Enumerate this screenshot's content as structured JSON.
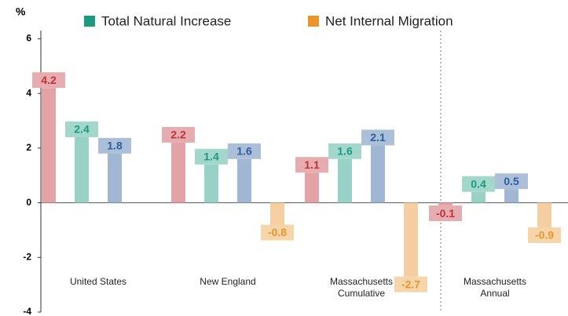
{
  "chart_data": {
    "type": "bar",
    "y_label": "%",
    "categories": [
      "United States",
      "New England",
      "Massachusetts Cumulative",
      "Massachusetts Annual"
    ],
    "series": [
      {
        "color": "#c0323a",
        "values": [
          4.2,
          2.2,
          1.1,
          -0.1
        ]
      },
      {
        "name": "Total Natural Increase",
        "color": "#1a9a80",
        "values": [
          2.4,
          1.4,
          1.6,
          0.4
        ]
      },
      {
        "color": "#2c5f9e",
        "values": [
          1.8,
          1.6,
          2.1,
          0.5
        ]
      },
      {
        "name": "Net Internal Migration",
        "color": "#e8952e",
        "values": [
          null,
          -0.8,
          -2.7,
          -0.9
        ]
      }
    ],
    "ylim": [
      -4,
      6.3
    ],
    "yticks": [
      -4,
      -2,
      0,
      2,
      4,
      6
    ]
  }
}
